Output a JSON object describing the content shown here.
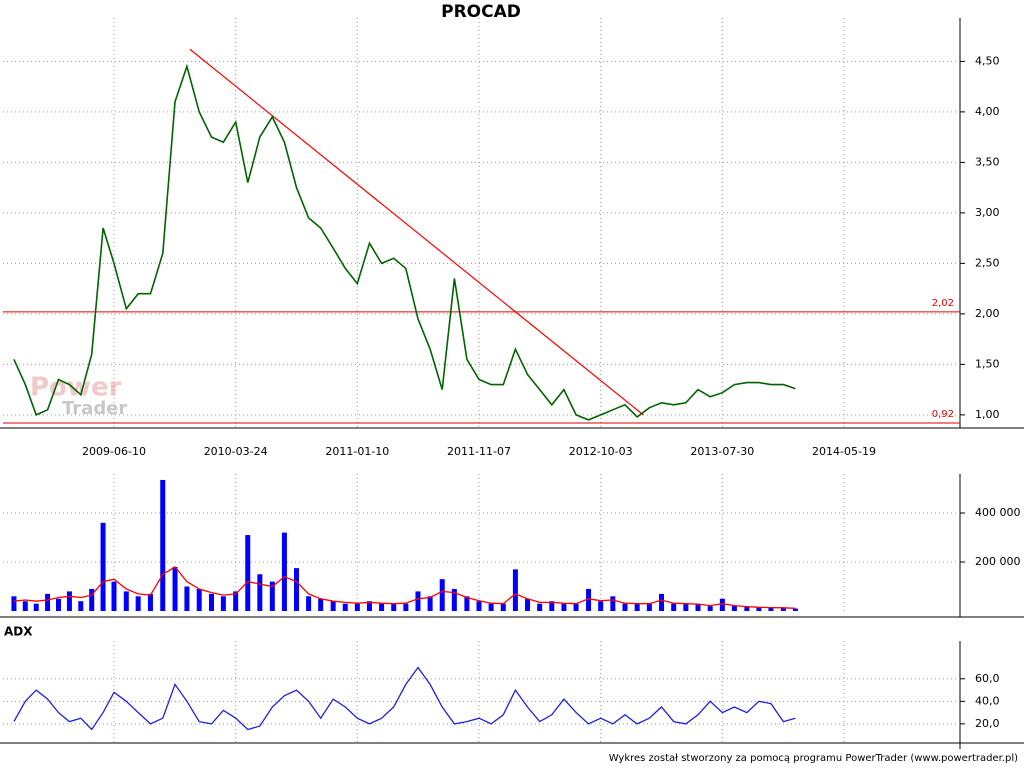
{
  "footer": "Wykres został stworzony za pomocą programu PowerTrader (www.powertrader.pl)",
  "chart_data": [
    {
      "type": "line",
      "title": "PROCAD",
      "watermark": [
        "Power",
        "Trader"
      ],
      "color": "#006400",
      "x": [
        "2008-10-15",
        "2008-11-11",
        "2008-12-07",
        "2009-01-03",
        "2009-01-29",
        "2009-02-24",
        "2009-03-23",
        "2009-04-18",
        "2009-05-15",
        "2009-06-10",
        "2009-07-09",
        "2009-08-06",
        "2009-09-04",
        "2009-10-03",
        "2009-11-01",
        "2009-11-29",
        "2009-12-28",
        "2010-01-26",
        "2010-02-23",
        "2010-03-24",
        "2010-04-22",
        "2010-05-21",
        "2010-06-20",
        "2010-07-19",
        "2010-08-17",
        "2010-09-15",
        "2010-10-14",
        "2010-11-13",
        "2010-12-12",
        "2011-01-10",
        "2011-02-09",
        "2011-03-11",
        "2011-04-10",
        "2011-05-10",
        "2011-06-09",
        "2011-07-09",
        "2011-08-08",
        "2011-09-07",
        "2011-10-08",
        "2011-11-07",
        "2011-12-10",
        "2012-01-12",
        "2012-02-14",
        "2012-03-18",
        "2012-04-20",
        "2012-05-23",
        "2012-06-25",
        "2012-07-28",
        "2012-08-31",
        "2012-10-03",
        "2012-11-02",
        "2012-12-02",
        "2013-01-01",
        "2013-01-31",
        "2013-03-02",
        "2013-04-01",
        "2013-05-01",
        "2013-05-31",
        "2013-06-30",
        "2013-07-30",
        "2013-08-28",
        "2013-09-27",
        "2013-10-26",
        "2013-11-24",
        "2013-12-24",
        "2014-01-22"
      ],
      "values": [
        1.55,
        1.3,
        1.0,
        1.05,
        1.35,
        1.3,
        1.2,
        1.6,
        2.85,
        2.5,
        2.05,
        2.2,
        2.2,
        2.6,
        4.1,
        4.45,
        4.0,
        3.75,
        3.7,
        3.9,
        3.3,
        3.75,
        3.95,
        3.7,
        3.25,
        2.95,
        2.85,
        2.65,
        2.45,
        2.3,
        2.7,
        2.5,
        2.55,
        2.45,
        1.95,
        1.65,
        1.25,
        2.35,
        1.55,
        1.35,
        1.3,
        1.3,
        1.65,
        1.4,
        1.25,
        1.1,
        1.25,
        1.0,
        0.95,
        1.0,
        1.05,
        1.1,
        0.98,
        1.07,
        1.12,
        1.1,
        1.12,
        1.25,
        1.18,
        1.22,
        1.3,
        1.32,
        1.32,
        1.3,
        1.3,
        1.26
      ],
      "xlim": [
        "2008-09-19",
        "2015-02-22"
      ],
      "xticks": [
        "2009-06-10",
        "2010-03-24",
        "2011-01-10",
        "2011-11-07",
        "2012-10-03",
        "2013-07-30",
        "2014-05-19"
      ],
      "ylim": [
        0.87,
        4.89
      ],
      "yticks": [
        {
          "value": 1,
          "label": "1,00"
        },
        {
          "value": 1.5,
          "label": "1,50"
        },
        {
          "value": 2,
          "label": "2,00"
        },
        {
          "value": 2.5,
          "label": "2,50"
        },
        {
          "value": 3,
          "label": "3,00"
        },
        {
          "value": 3.5,
          "label": "3,50"
        },
        {
          "value": 4,
          "label": "4,00"
        },
        {
          "value": 4.5,
          "label": "4,50"
        }
      ],
      "grid": true,
      "hlines": [
        {
          "value": 2.02,
          "label": "2,02"
        },
        {
          "value": 0.92,
          "label": "0,92"
        }
      ],
      "hline_color": "#e00000",
      "trendline": {
        "color": "#ff0000",
        "start": {
          "x": "2009-12-06",
          "y": 4.62
        },
        "end": {
          "x": "2013-01-16",
          "y": 1.0
        }
      }
    },
    {
      "type": "bar",
      "color": "#0000ff",
      "x": [
        "2008-10-15",
        "2008-11-11",
        "2008-12-07",
        "2009-01-03",
        "2009-01-29",
        "2009-02-24",
        "2009-03-23",
        "2009-04-18",
        "2009-05-15",
        "2009-06-10",
        "2009-07-09",
        "2009-08-06",
        "2009-09-04",
        "2009-10-03",
        "2009-11-01",
        "2009-11-29",
        "2009-12-28",
        "2010-01-26",
        "2010-02-23",
        "2010-03-24",
        "2010-04-22",
        "2010-05-21",
        "2010-06-20",
        "2010-07-19",
        "2010-08-17",
        "2010-09-15",
        "2010-10-14",
        "2010-11-13",
        "2010-12-12",
        "2011-01-10",
        "2011-02-09",
        "2011-03-11",
        "2011-04-10",
        "2011-05-10",
        "2011-06-09",
        "2011-07-09",
        "2011-08-08",
        "2011-09-07",
        "2011-10-08",
        "2011-11-07",
        "2011-12-10",
        "2012-01-12",
        "2012-02-14",
        "2012-03-18",
        "2012-04-20",
        "2012-05-23",
        "2012-06-25",
        "2012-07-28",
        "2012-08-31",
        "2012-10-03",
        "2012-11-02",
        "2012-12-02",
        "2013-01-01",
        "2013-01-31",
        "2013-03-02",
        "2013-04-01",
        "2013-05-01",
        "2013-05-31",
        "2013-06-30",
        "2013-07-30",
        "2013-08-28",
        "2013-09-27",
        "2013-10-26",
        "2013-11-24",
        "2013-12-24",
        "2014-01-22"
      ],
      "values": [
        60000,
        40000,
        30000,
        70000,
        50000,
        80000,
        40000,
        90000,
        360000,
        120000,
        80000,
        60000,
        70000,
        535000,
        180000,
        100000,
        90000,
        70000,
        60000,
        80000,
        310000,
        150000,
        120000,
        320000,
        175000,
        60000,
        50000,
        40000,
        30000,
        30000,
        40000,
        30000,
        30000,
        30000,
        80000,
        60000,
        130000,
        90000,
        60000,
        40000,
        30000,
        30000,
        170000,
        50000,
        30000,
        40000,
        30000,
        30000,
        90000,
        40000,
        60000,
        30000,
        30000,
        30000,
        70000,
        30000,
        30000,
        30000,
        20000,
        50000,
        20000,
        20000,
        15000,
        15000,
        15000,
        10000
      ],
      "moving_average": {
        "color": "#ff0000",
        "values": [
          40000,
          45000,
          40000,
          45000,
          55000,
          60000,
          55000,
          65000,
          120000,
          130000,
          90000,
          70000,
          65000,
          150000,
          180000,
          120000,
          90000,
          75000,
          65000,
          70000,
          120000,
          110000,
          100000,
          140000,
          120000,
          70000,
          50000,
          40000,
          35000,
          32000,
          35000,
          32000,
          30000,
          32000,
          50000,
          55000,
          80000,
          75000,
          55000,
          42000,
          32000,
          30000,
          70000,
          50000,
          35000,
          35000,
          32000,
          30000,
          50000,
          42000,
          45000,
          32000,
          30000,
          30000,
          45000,
          32000,
          30000,
          28000,
          22000,
          30000,
          22000,
          18000,
          15000,
          14000,
          13000,
          11000
        ]
      },
      "ylim": [
        0,
        543000
      ],
      "yticks": [
        {
          "value": 200000,
          "label": "200 000"
        },
        {
          "value": 400000,
          "label": "400 000"
        }
      ],
      "grid": true
    },
    {
      "type": "line",
      "title": "ADX",
      "color": "#2020e0",
      "x": [
        "2008-10-15",
        "2008-11-11",
        "2008-12-07",
        "2009-01-03",
        "2009-01-29",
        "2009-02-24",
        "2009-03-23",
        "2009-04-18",
        "2009-05-15",
        "2009-06-10",
        "2009-07-09",
        "2009-08-06",
        "2009-09-04",
        "2009-10-03",
        "2009-11-01",
        "2009-11-29",
        "2009-12-28",
        "2010-01-26",
        "2010-02-23",
        "2010-03-24",
        "2010-04-22",
        "2010-05-21",
        "2010-06-20",
        "2010-07-19",
        "2010-08-17",
        "2010-09-15",
        "2010-10-14",
        "2010-11-13",
        "2010-12-12",
        "2011-01-10",
        "2011-02-09",
        "2011-03-11",
        "2011-04-10",
        "2011-05-10",
        "2011-06-09",
        "2011-07-09",
        "2011-08-08",
        "2011-09-07",
        "2011-10-08",
        "2011-11-07",
        "2011-12-10",
        "2012-01-12",
        "2012-02-14",
        "2012-03-18",
        "2012-04-20",
        "2012-05-23",
        "2012-06-25",
        "2012-07-28",
        "2012-08-31",
        "2012-10-03",
        "2012-11-02",
        "2012-12-02",
        "2013-01-01",
        "2013-01-31",
        "2013-03-02",
        "2013-04-01",
        "2013-05-01",
        "2013-05-31",
        "2013-06-30",
        "2013-07-30",
        "2013-08-28",
        "2013-09-27",
        "2013-10-26",
        "2013-11-24",
        "2013-12-24",
        "2014-01-22"
      ],
      "values": [
        22,
        40,
        50,
        42,
        30,
        22,
        25,
        15,
        30,
        48,
        40,
        30,
        20,
        25,
        55,
        40,
        22,
        20,
        32,
        25,
        15,
        18,
        35,
        45,
        50,
        40,
        25,
        42,
        35,
        25,
        20,
        25,
        35,
        55,
        70,
        55,
        35,
        20,
        22,
        25,
        20,
        28,
        50,
        35,
        22,
        28,
        42,
        30,
        20,
        25,
        20,
        28,
        20,
        25,
        35,
        22,
        20,
        28,
        40,
        30,
        35,
        30,
        40,
        38,
        22,
        25
      ],
      "ylim": [
        3,
        90
      ],
      "yticks": [
        {
          "value": 20,
          "label": "20,0"
        },
        {
          "value": 40,
          "label": "40,0"
        },
        {
          "value": 60,
          "label": "60,0"
        }
      ],
      "grid": true
    }
  ]
}
